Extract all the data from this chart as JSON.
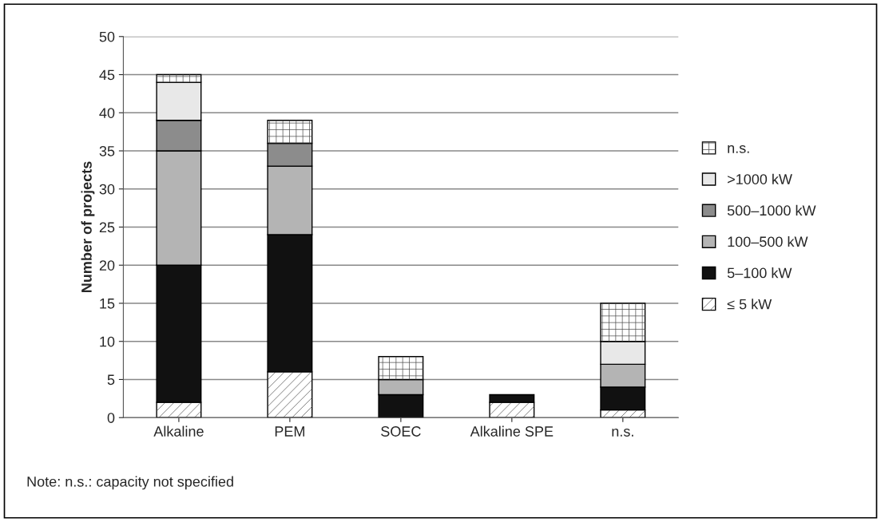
{
  "chart_data": {
    "type": "bar",
    "stacked": true,
    "ylabel": "Number of projects",
    "categories": [
      "Alkaline",
      "PEM",
      "SOEC",
      "Alkaline SPE",
      "n.s."
    ],
    "series": [
      {
        "name": "≤ 5 kW",
        "color": "#ffffff",
        "values": [
          2,
          6,
          0,
          2,
          1
        ]
      },
      {
        "name": "5–100 kW",
        "color": "#111111",
        "values": [
          18,
          18,
          3,
          1,
          3
        ]
      },
      {
        "name": "100–500 kW",
        "color": "#b4b4b4",
        "values": [
          15,
          9,
          2,
          0,
          3
        ]
      },
      {
        "name": "500–1000 kW",
        "color": "#8c8c8c",
        "values": [
          4,
          3,
          0,
          0,
          0
        ]
      },
      {
        "name": ">1000 kW",
        "color": "#e8e8e8",
        "values": [
          5,
          0,
          0,
          0,
          3
        ]
      },
      {
        "name": "n.s.",
        "color": "#ffffff",
        "values": [
          1,
          3,
          3,
          0,
          5
        ]
      }
    ],
    "ylim": [
      0,
      50
    ],
    "yticks": [
      0,
      5,
      10,
      15,
      20,
      25,
      30,
      35,
      40,
      45,
      50
    ],
    "grid": "y",
    "legend": "right",
    "annotations": [
      "Note: n.s.: capacity not specified"
    ]
  }
}
